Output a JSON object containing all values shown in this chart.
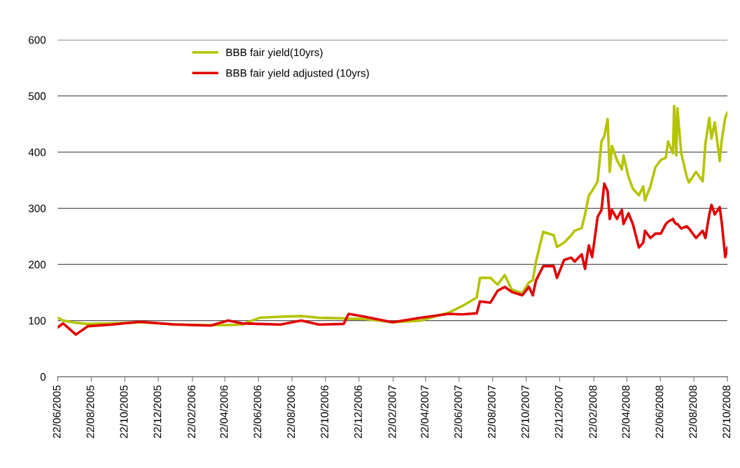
{
  "chart_data": {
    "type": "line",
    "x": [
      "2005-06-22",
      "2005-07-02",
      "2005-07-25",
      "2005-08-16",
      "2005-09-29",
      "2005-11-19",
      "2006-01-22",
      "2006-03-27",
      "2006-04-28",
      "2006-05-23",
      "2006-06-24",
      "2006-08-01",
      "2006-09-08",
      "2006-10-10",
      "2006-11-24",
      "2006-12-03",
      "2007-01-01",
      "2007-02-21",
      "2007-04-13",
      "2007-06-03",
      "2007-06-28",
      "2007-07-24",
      "2007-07-30",
      "2007-08-18",
      "2007-08-31",
      "2007-09-13",
      "2007-09-26",
      "2007-10-15",
      "2007-10-27",
      "2007-11-03",
      "2007-11-09",
      "2007-11-22",
      "2007-12-11",
      "2007-12-17",
      "2007-12-30",
      "2008-01-12",
      "2008-01-18",
      "2008-01-31",
      "2008-02-06",
      "2008-02-13",
      "2008-02-19",
      "2008-02-29",
      "2008-03-07",
      "2008-03-12",
      "2008-03-18",
      "2008-03-22",
      "2008-03-26",
      "2008-04-04",
      "2008-04-13",
      "2008-04-16",
      "2008-04-25",
      "2008-05-03",
      "2008-05-14",
      "2008-05-22",
      "2008-05-25",
      "2008-06-04",
      "2008-06-13",
      "2008-06-23",
      "2008-07-02",
      "2008-07-06",
      "2008-07-15",
      "2008-07-17",
      "2008-07-21",
      "2008-07-23",
      "2008-07-30",
      "2008-08-09",
      "2008-08-13",
      "2008-08-26",
      "2008-09-07",
      "2008-09-12",
      "2008-09-19",
      "2008-09-23",
      "2008-09-29",
      "2008-10-08",
      "2008-10-12",
      "2008-10-18",
      "2008-10-22"
    ],
    "series": [
      {
        "name": "BBB fair yield(10yrs)",
        "color": "#b5c400",
        "values": [
          105,
          100,
          96,
          94,
          95,
          97,
          93,
          92,
          92,
          93,
          105,
          107,
          108,
          105,
          104,
          103,
          103,
          97,
          100,
          114,
          126,
          141,
          176,
          176,
          164,
          181,
          155,
          149,
          168,
          172,
          206,
          258,
          252,
          231,
          239,
          252,
          260,
          265,
          289,
          323,
          331,
          348,
          419,
          428,
          459,
          365,
          411,
          386,
          369,
          394,
          356,
          335,
          323,
          339,
          314,
          339,
          373,
          386,
          390,
          419,
          398,
          482,
          394,
          478,
          398,
          356,
          346,
          365,
          348,
          415,
          461,
          424,
          453,
          384,
          424,
          461,
          470
        ]
      },
      {
        "name": "BBB fair yield adjusted (10yrs)",
        "color": "#e00000",
        "values": [
          88,
          95,
          75,
          90,
          93,
          98,
          93,
          91,
          100,
          95,
          94,
          93,
          100,
          93,
          94,
          112,
          107,
          97,
          105,
          112,
          111,
          113,
          134,
          132,
          153,
          160,
          151,
          145,
          160,
          145,
          172,
          197,
          197,
          176,
          208,
          212,
          205,
          218,
          192,
          234,
          213,
          285,
          297,
          344,
          331,
          281,
          297,
          281,
          297,
          272,
          291,
          272,
          230,
          239,
          260,
          247,
          255,
          255,
          272,
          276,
          281,
          276,
          272,
          272,
          264,
          268,
          264,
          247,
          260,
          247,
          289,
          306,
          289,
          302,
          272,
          213,
          230
        ]
      }
    ],
    "xlim": [
      "2005-06-22",
      "2008-10-22"
    ],
    "xticks": [
      {
        "value": "2005-06-22",
        "label": "22/06/2005"
      },
      {
        "value": "2005-08-22",
        "label": "22/08/2005"
      },
      {
        "value": "2005-10-22",
        "label": "22/10/2005"
      },
      {
        "value": "2005-12-22",
        "label": "22/12/2005"
      },
      {
        "value": "2006-02-22",
        "label": "22/02/2006"
      },
      {
        "value": "2006-04-22",
        "label": "22/04/2006"
      },
      {
        "value": "2006-06-22",
        "label": "22/06/2006"
      },
      {
        "value": "2006-08-22",
        "label": "22/08/2006"
      },
      {
        "value": "2006-10-22",
        "label": "22/10/2006"
      },
      {
        "value": "2006-12-22",
        "label": "22/12/2006"
      },
      {
        "value": "2007-02-22",
        "label": "22/02/2007"
      },
      {
        "value": "2007-04-22",
        "label": "22/04/2007"
      },
      {
        "value": "2007-06-22",
        "label": "22/06/2007"
      },
      {
        "value": "2007-08-22",
        "label": "22/08/2007"
      },
      {
        "value": "2007-10-22",
        "label": "22/10/2007"
      },
      {
        "value": "2007-12-22",
        "label": "22/12/2007"
      },
      {
        "value": "2008-02-22",
        "label": "22/02/2008"
      },
      {
        "value": "2008-04-22",
        "label": "22/04/2008"
      },
      {
        "value": "2008-06-22",
        "label": "22/06/2008"
      },
      {
        "value": "2008-08-22",
        "label": "22/08/2008"
      },
      {
        "value": "2008-10-22",
        "label": "22/10/2008"
      }
    ],
    "ylim": [
      0,
      600
    ],
    "yticks": [
      0,
      100,
      200,
      300,
      400,
      500,
      600
    ],
    "grid": "y",
    "legend": "top left",
    "marker": "none",
    "line_style": "solid"
  }
}
